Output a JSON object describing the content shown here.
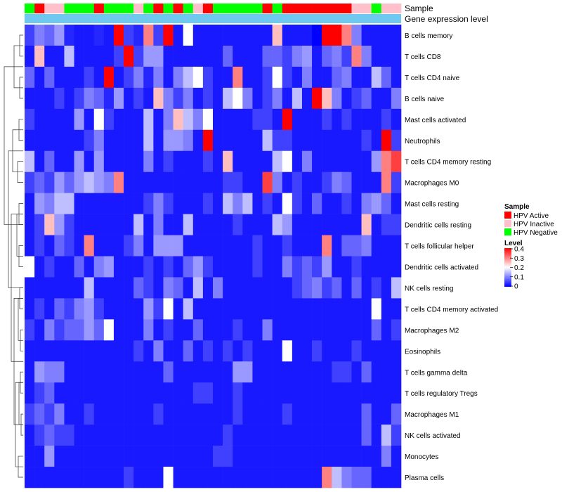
{
  "chart_data": {
    "type": "heatmap",
    "annotation_labels": {
      "sample": "Sample",
      "expression": "Gene expression level"
    },
    "rows": [
      "B cells memory",
      "T cells CD8",
      "T cells CD4 naive",
      "B cells naive",
      "Mast cells activated",
      "Neutrophils",
      "T cells CD4 memory resting",
      "Macrophages M0",
      "Mast cells resting",
      "Dendritic cells resting",
      "T cells follicular helper",
      "Dendritic cells activated",
      "NK cells resting",
      "T cells CD4 memory activated",
      "Macrophages M2",
      "Eosinophils",
      "T cells gamma delta",
      "T cells regulatory  Tregs",
      "Macrophages M1",
      "NK cells activated",
      "Monocytes",
      "Plasma cells"
    ],
    "sample_groups": [
      "G",
      "R",
      "P",
      "P",
      "G",
      "G",
      "G",
      "R",
      "G",
      "G",
      "G",
      "P",
      "G",
      "R",
      "G",
      "R",
      "G",
      "P",
      "R",
      "G",
      "G",
      "G",
      "G",
      "G",
      "R",
      "G",
      "R",
      "R",
      "R",
      "R",
      "R",
      "R",
      "R",
      "P",
      "P",
      "G",
      "P",
      "P"
    ],
    "values": [
      [
        0.05,
        0.1,
        0.08,
        0.12,
        0.03,
        0.02,
        0.02,
        0.03,
        0.02,
        0.4,
        0.05,
        0.03,
        0.3,
        0.05,
        0.4,
        0.02,
        0.2,
        0.02,
        0.02,
        0.02,
        0.02,
        0.02,
        0.02,
        0.02,
        0.02,
        0.25,
        0.02,
        0.02,
        0.02,
        0.0,
        0.4,
        0.4,
        0.3,
        0.1,
        0.02,
        0.02,
        0.02,
        0.02
      ],
      [
        0.02,
        0.25,
        0.02,
        0.02,
        0.15,
        0.02,
        0.02,
        0.02,
        0.02,
        0.05,
        0.4,
        0.05,
        0.12,
        0.12,
        0.02,
        0.02,
        0.02,
        0.02,
        0.02,
        0.02,
        0.08,
        0.02,
        0.02,
        0.02,
        0.08,
        0.08,
        0.05,
        0.1,
        0.12,
        0.02,
        0.08,
        0.1,
        0.05,
        0.3,
        0.1,
        0.02,
        0.02,
        0.02
      ],
      [
        0.08,
        0.02,
        0.08,
        0.02,
        0.02,
        0.02,
        0.05,
        0.02,
        0.4,
        0.02,
        0.05,
        0.1,
        0.03,
        0.1,
        0.02,
        0.1,
        0.15,
        0.2,
        0.05,
        0.02,
        0.02,
        0.3,
        0.02,
        0.02,
        0.05,
        0.2,
        0.05,
        0.02,
        0.1,
        0.02,
        0.02,
        0.08,
        0.1,
        0.02,
        0.02,
        0.15,
        0.08,
        0.02
      ],
      [
        0.02,
        0.02,
        0.02,
        0.05,
        0.02,
        0.05,
        0.1,
        0.08,
        0.03,
        0.12,
        0.02,
        0.05,
        0.02,
        0.25,
        0.1,
        0.05,
        0.1,
        0.02,
        0.05,
        0.02,
        0.15,
        0.2,
        0.1,
        0.02,
        0.05,
        0.1,
        0.02,
        0.15,
        0.02,
        0.4,
        0.25,
        0.1,
        0.02,
        0.05,
        0.08,
        0.02,
        0.02,
        0.1
      ],
      [
        0.05,
        0.02,
        0.02,
        0.02,
        0.02,
        0.12,
        0.02,
        0.2,
        0.05,
        0.02,
        0.02,
        0.02,
        0.15,
        0.02,
        0.1,
        0.25,
        0.15,
        0.1,
        0.2,
        0.02,
        0.02,
        0.02,
        0.02,
        0.05,
        0.05,
        0.02,
        0.4,
        0.02,
        0.02,
        0.02,
        0.05,
        0.02,
        0.05,
        0.02,
        0.02,
        0.02,
        0.05,
        0.02
      ],
      [
        0.02,
        0.02,
        0.02,
        0.02,
        0.02,
        0.02,
        0.05,
        0.1,
        0.02,
        0.02,
        0.02,
        0.02,
        0.15,
        0.02,
        0.12,
        0.12,
        0.1,
        0.02,
        0.4,
        0.02,
        0.02,
        0.02,
        0.02,
        0.02,
        0.15,
        0.05,
        0.05,
        0.02,
        0.02,
        0.02,
        0.02,
        0.02,
        0.02,
        0.02,
        0.05,
        0.02,
        0.4,
        0.05
      ],
      [
        0.15,
        0.02,
        0.08,
        0.02,
        0.02,
        0.12,
        0.02,
        0.12,
        0.02,
        0.02,
        0.02,
        0.02,
        0.1,
        0.02,
        0.05,
        0.02,
        0.02,
        0.02,
        0.05,
        0.02,
        0.25,
        0.02,
        0.02,
        0.02,
        0.02,
        0.15,
        0.2,
        0.02,
        0.1,
        0.02,
        0.02,
        0.02,
        0.02,
        0.02,
        0.02,
        0.12,
        0.3,
        0.35
      ],
      [
        0.05,
        0.08,
        0.05,
        0.12,
        0.08,
        0.12,
        0.15,
        0.12,
        0.1,
        0.3,
        0.02,
        0.02,
        0.02,
        0.02,
        0.02,
        0.02,
        0.02,
        0.02,
        0.02,
        0.02,
        0.05,
        0.05,
        0.02,
        0.02,
        0.35,
        0.1,
        0.02,
        0.05,
        0.02,
        0.02,
        0.05,
        0.1,
        0.08,
        0.02,
        0.02,
        0.02,
        0.3,
        0.05
      ],
      [
        0.02,
        0.12,
        0.1,
        0.15,
        0.15,
        0.02,
        0.02,
        0.02,
        0.02,
        0.02,
        0.02,
        0.02,
        0.05,
        0.1,
        0.05,
        0.02,
        0.02,
        0.02,
        0.05,
        0.02,
        0.15,
        0.1,
        0.15,
        0.02,
        0.05,
        0.02,
        0.2,
        0.05,
        0.02,
        0.08,
        0.02,
        0.02,
        0.05,
        0.02,
        0.1,
        0.12,
        0.08,
        0.02
      ],
      [
        0.02,
        0.05,
        0.25,
        0.12,
        0.05,
        0.02,
        0.02,
        0.02,
        0.02,
        0.02,
        0.02,
        0.15,
        0.02,
        0.1,
        0.02,
        0.02,
        0.15,
        0.02,
        0.02,
        0.02,
        0.02,
        0.05,
        0.02,
        0.02,
        0.02,
        0.15,
        0.12,
        0.02,
        0.02,
        0.02,
        0.02,
        0.02,
        0.02,
        0.02,
        0.25,
        0.02,
        0.05,
        0.05
      ],
      [
        0.02,
        0.05,
        0.02,
        0.08,
        0.05,
        0.02,
        0.3,
        0.02,
        0.02,
        0.02,
        0.05,
        0.1,
        0.02,
        0.12,
        0.12,
        0.12,
        0.02,
        0.02,
        0.02,
        0.02,
        0.02,
        0.02,
        0.02,
        0.05,
        0.02,
        0.02,
        0.05,
        0.02,
        0.02,
        0.02,
        0.3,
        0.02,
        0.08,
        0.08,
        0.1,
        0.02,
        0.02,
        0.02
      ],
      [
        0.2,
        0.02,
        0.05,
        0.02,
        0.02,
        0.08,
        0.02,
        0.1,
        0.12,
        0.02,
        0.02,
        0.02,
        0.05,
        0.02,
        0.05,
        0.02,
        0.08,
        0.12,
        0.05,
        0.02,
        0.02,
        0.02,
        0.02,
        0.05,
        0.02,
        0.02,
        0.1,
        0.05,
        0.08,
        0.05,
        0.12,
        0.02,
        0.02,
        0.05,
        0.02,
        0.02,
        0.02,
        0.02
      ],
      [
        0.02,
        0.02,
        0.02,
        0.02,
        0.02,
        0.02,
        0.15,
        0.02,
        0.02,
        0.02,
        0.02,
        0.08,
        0.05,
        0.02,
        0.1,
        0.08,
        0.02,
        0.15,
        0.02,
        0.1,
        0.02,
        0.02,
        0.02,
        0.02,
        0.02,
        0.02,
        0.02,
        0.05,
        0.08,
        0.1,
        0.05,
        0.08,
        0.02,
        0.08,
        0.02,
        0.05,
        0.02,
        0.15
      ],
      [
        0.02,
        0.05,
        0.02,
        0.08,
        0.05,
        0.1,
        0.12,
        0.05,
        0.02,
        0.02,
        0.02,
        0.02,
        0.12,
        0.05,
        0.2,
        0.02,
        0.15,
        0.02,
        0.02,
        0.02,
        0.02,
        0.02,
        0.02,
        0.02,
        0.02,
        0.02,
        0.02,
        0.02,
        0.02,
        0.02,
        0.02,
        0.02,
        0.02,
        0.02,
        0.02,
        0.2,
        0.02,
        0.02
      ],
      [
        0.05,
        0.02,
        0.1,
        0.05,
        0.08,
        0.08,
        0.12,
        0.08,
        0.2,
        0.02,
        0.02,
        0.02,
        0.1,
        0.02,
        0.05,
        0.02,
        0.02,
        0.08,
        0.02,
        0.02,
        0.02,
        0.05,
        0.02,
        0.02,
        0.1,
        0.02,
        0.02,
        0.02,
        0.02,
        0.02,
        0.02,
        0.02,
        0.02,
        0.02,
        0.02,
        0.08,
        0.02,
        0.05
      ],
      [
        0.02,
        0.02,
        0.02,
        0.02,
        0.02,
        0.02,
        0.02,
        0.02,
        0.02,
        0.02,
        0.02,
        0.05,
        0.02,
        0.1,
        0.02,
        0.02,
        0.08,
        0.02,
        0.05,
        0.02,
        0.05,
        0.02,
        0.05,
        0.02,
        0.02,
        0.02,
        0.2,
        0.02,
        0.02,
        0.05,
        0.02,
        0.02,
        0.02,
        0.05,
        0.02,
        0.02,
        0.02,
        0.02
      ],
      [
        0.02,
        0.12,
        0.1,
        0.1,
        0.02,
        0.02,
        0.02,
        0.02,
        0.02,
        0.02,
        0.02,
        0.02,
        0.02,
        0.02,
        0.08,
        0.02,
        0.02,
        0.02,
        0.02,
        0.02,
        0.02,
        0.12,
        0.12,
        0.02,
        0.02,
        0.02,
        0.02,
        0.02,
        0.02,
        0.02,
        0.02,
        0.05,
        0.05,
        0.02,
        0.08,
        0.02,
        0.02,
        0.02
      ],
      [
        0.02,
        0.05,
        0.08,
        0.02,
        0.02,
        0.02,
        0.02,
        0.02,
        0.02,
        0.02,
        0.02,
        0.02,
        0.02,
        0.02,
        0.02,
        0.02,
        0.02,
        0.05,
        0.05,
        0.02,
        0.02,
        0.05,
        0.02,
        0.02,
        0.02,
        0.02,
        0.02,
        0.02,
        0.02,
        0.02,
        0.02,
        0.02,
        0.02,
        0.02,
        0.02,
        0.02,
        0.02,
        0.02
      ],
      [
        0.05,
        0.08,
        0.05,
        0.1,
        0.02,
        0.02,
        0.05,
        0.02,
        0.02,
        0.02,
        0.02,
        0.02,
        0.02,
        0.05,
        0.02,
        0.02,
        0.02,
        0.02,
        0.02,
        0.02,
        0.02,
        0.05,
        0.02,
        0.02,
        0.02,
        0.02,
        0.05,
        0.02,
        0.02,
        0.02,
        0.02,
        0.02,
        0.02,
        0.02,
        0.08,
        0.02,
        0.02,
        0.08
      ],
      [
        0.02,
        0.05,
        0.08,
        0.05,
        0.05,
        0.02,
        0.02,
        0.02,
        0.02,
        0.02,
        0.02,
        0.02,
        0.02,
        0.02,
        0.02,
        0.02,
        0.02,
        0.02,
        0.02,
        0.02,
        0.05,
        0.02,
        0.02,
        0.02,
        0.02,
        0.02,
        0.02,
        0.02,
        0.02,
        0.02,
        0.02,
        0.02,
        0.02,
        0.02,
        0.08,
        0.02,
        0.15,
        0.05
      ],
      [
        0.02,
        0.02,
        0.12,
        0.02,
        0.02,
        0.02,
        0.02,
        0.02,
        0.02,
        0.02,
        0.02,
        0.02,
        0.02,
        0.02,
        0.02,
        0.02,
        0.02,
        0.02,
        0.02,
        0.05,
        0.05,
        0.02,
        0.02,
        0.02,
        0.02,
        0.02,
        0.02,
        0.02,
        0.02,
        0.02,
        0.02,
        0.02,
        0.02,
        0.02,
        0.02,
        0.02,
        0.1,
        0.02
      ],
      [
        0.02,
        0.02,
        0.02,
        0.02,
        0.02,
        0.02,
        0.02,
        0.02,
        0.02,
        0.02,
        0.05,
        0.02,
        0.02,
        0.02,
        0.2,
        0.02,
        0.02,
        0.02,
        0.02,
        0.02,
        0.02,
        0.02,
        0.02,
        0.02,
        0.02,
        0.02,
        0.02,
        0.02,
        0.02,
        0.02,
        0.3,
        0.15,
        0.1,
        0.08,
        0.08,
        0.02,
        0.02,
        0.02
      ]
    ],
    "legend_sample": {
      "title": "Sample",
      "items": [
        {
          "key": "R",
          "label": "HPV Active",
          "color": "#ff0000"
        },
        {
          "key": "P",
          "label": "HPV Inactive",
          "color": "#ffc0cb"
        },
        {
          "key": "G",
          "label": "HPV Negative",
          "color": "#00ff00"
        }
      ]
    },
    "legend_level": {
      "title": "Level",
      "min": 0,
      "max": 0.4,
      "ticks": [
        "0.4",
        "0.3",
        "0.2",
        "0.1",
        "0"
      ]
    },
    "colors": {
      "low": "#0000ff",
      "mid": "#ffffff",
      "high": "#ff0000",
      "expression_bar": "#6fc8f0"
    }
  }
}
